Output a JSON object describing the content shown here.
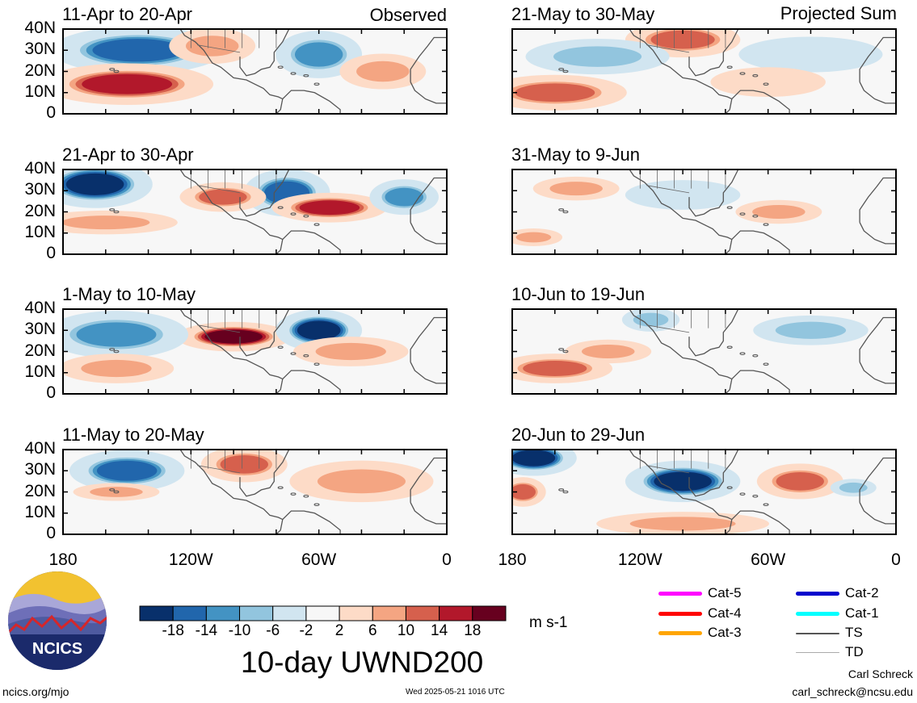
{
  "chart_data": {
    "type": "heatmap",
    "variable_label": "10-day UWND200",
    "units": "m s-1",
    "colorbar": {
      "ticks": [
        "-18",
        "-14",
        "-10",
        "-6",
        "-2",
        "2",
        "6",
        "10",
        "14",
        "18"
      ],
      "colors": [
        "#08306b",
        "#2166ac",
        "#4393c3",
        "#92c5de",
        "#d1e5f0",
        "#f7f7f7",
        "#fddbc7",
        "#f4a582",
        "#d6604d",
        "#b2182b",
        "#67001f"
      ]
    },
    "y_ticks": [
      "40N",
      "30N",
      "20N",
      "10N",
      "0"
    ],
    "x_ticks": [
      "180",
      "120W",
      "60W",
      "0"
    ],
    "columns": [
      {
        "label": "Observed",
        "panels": [
          {
            "title": "11-Apr to 20-Apr",
            "blobs": [
              {
                "lon": -145,
                "lat": 30,
                "rx": 30,
                "ry": 8,
                "value": -14
              },
              {
                "lon": -60,
                "lat": 28,
                "rx": 15,
                "ry": 8,
                "value": -10
              },
              {
                "lon": -150,
                "lat": 14,
                "rx": 30,
                "ry": 7,
                "value": 14
              },
              {
                "lon": -110,
                "lat": 32,
                "rx": 15,
                "ry": 6,
                "value": 6
              },
              {
                "lon": -30,
                "lat": 20,
                "rx": 15,
                "ry": 6,
                "value": 6
              }
            ]
          },
          {
            "title": "21-Apr to 30-Apr",
            "blobs": [
              {
                "lon": -165,
                "lat": 33,
                "rx": 20,
                "ry": 8,
                "value": -18
              },
              {
                "lon": -75,
                "lat": 29,
                "rx": 15,
                "ry": 8,
                "value": -14
              },
              {
                "lon": -55,
                "lat": 22,
                "rx": 20,
                "ry": 5,
                "value": 14
              },
              {
                "lon": -105,
                "lat": 27,
                "rx": 15,
                "ry": 5,
                "value": 10
              },
              {
                "lon": -20,
                "lat": 27,
                "rx": 12,
                "ry": 6,
                "value": -10
              },
              {
                "lon": -160,
                "lat": 15,
                "rx": 25,
                "ry": 4,
                "value": 6
              }
            ]
          },
          {
            "title": "1-May to 10-May",
            "blobs": [
              {
                "lon": -100,
                "lat": 27,
                "rx": 20,
                "ry": 5,
                "value": 18
              },
              {
                "lon": -60,
                "lat": 30,
                "rx": 15,
                "ry": 7,
                "value": -18
              },
              {
                "lon": -155,
                "lat": 28,
                "rx": 25,
                "ry": 8,
                "value": -10
              },
              {
                "lon": -155,
                "lat": 12,
                "rx": 20,
                "ry": 5,
                "value": 6
              },
              {
                "lon": -45,
                "lat": 20,
                "rx": 20,
                "ry": 5,
                "value": 6
              }
            ]
          },
          {
            "title": "11-May to 20-May",
            "blobs": [
              {
                "lon": -150,
                "lat": 30,
                "rx": 20,
                "ry": 7,
                "value": -14
              },
              {
                "lon": -95,
                "lat": 33,
                "rx": 15,
                "ry": 6,
                "value": 10
              },
              {
                "lon": -40,
                "lat": 25,
                "rx": 25,
                "ry": 7,
                "value": 6
              },
              {
                "lon": -155,
                "lat": 20,
                "rx": 15,
                "ry": 3,
                "value": 6
              }
            ]
          }
        ]
      },
      {
        "label": "Projected Sum",
        "panels": [
          {
            "title": "21-May to 30-May",
            "blobs": [
              {
                "lon": -100,
                "lat": 35,
                "rx": 20,
                "ry": 6,
                "value": 10
              },
              {
                "lon": -160,
                "lat": 10,
                "rx": 25,
                "ry": 6,
                "value": 10
              },
              {
                "lon": -140,
                "lat": 27,
                "rx": 25,
                "ry": 6,
                "value": -6
              },
              {
                "lon": -40,
                "lat": 28,
                "rx": 25,
                "ry": 6,
                "value": -2
              },
              {
                "lon": -60,
                "lat": 15,
                "rx": 20,
                "ry": 5,
                "value": 2
              }
            ]
          },
          {
            "title": "31-May to 9-Jun",
            "blobs": [
              {
                "lon": -150,
                "lat": 31,
                "rx": 15,
                "ry": 4,
                "value": 6
              },
              {
                "lon": -55,
                "lat": 20,
                "rx": 15,
                "ry": 4,
                "value": 6
              },
              {
                "lon": -100,
                "lat": 28,
                "rx": 20,
                "ry": 5,
                "value": -2
              },
              {
                "lon": -170,
                "lat": 8,
                "rx": 10,
                "ry": 3,
                "value": 6
              }
            ]
          },
          {
            "title": "10-Jun to 19-Jun",
            "blobs": [
              {
                "lon": -160,
                "lat": 12,
                "rx": 20,
                "ry": 5,
                "value": 10
              },
              {
                "lon": -40,
                "lat": 30,
                "rx": 20,
                "ry": 5,
                "value": -6
              },
              {
                "lon": -115,
                "lat": 35,
                "rx": 10,
                "ry": 4,
                "value": -6
              },
              {
                "lon": -135,
                "lat": 20,
                "rx": 15,
                "ry": 4,
                "value": 6
              }
            ]
          },
          {
            "title": "20-Jun to 29-Jun",
            "blobs": [
              {
                "lon": -170,
                "lat": 36,
                "rx": 15,
                "ry": 6,
                "value": -18
              },
              {
                "lon": -100,
                "lat": 25,
                "rx": 20,
                "ry": 7,
                "value": -18
              },
              {
                "lon": -45,
                "lat": 25,
                "rx": 15,
                "ry": 6,
                "value": 10
              },
              {
                "lon": -175,
                "lat": 20,
                "rx": 8,
                "ry": 5,
                "value": 10
              },
              {
                "lon": -100,
                "lat": 5,
                "rx": 30,
                "ry": 4,
                "value": 6
              },
              {
                "lon": -20,
                "lat": 22,
                "rx": 8,
                "ry": 3,
                "value": -6
              }
            ]
          }
        ]
      }
    ]
  },
  "legend": {
    "items": [
      {
        "label": "Cat-5",
        "color": "#ff00ff"
      },
      {
        "label": "Cat-4",
        "color": "#ff0000"
      },
      {
        "label": "Cat-3",
        "color": "#ffa500"
      },
      {
        "label": "Cat-2",
        "color": "#0000cd"
      },
      {
        "label": "Cat-1",
        "color": "#00ffff"
      },
      {
        "label": "TS",
        "color": "#555555"
      },
      {
        "label": "TD",
        "color": "#aaaaaa"
      }
    ]
  },
  "logo": {
    "text": "NCICS"
  },
  "footer": {
    "url": "ncics.org/mjo",
    "timestamp": "Wed 2025-05-21 1016 UTC",
    "author": "Carl Schreck",
    "email": "carl_schreck@ncsu.edu"
  }
}
